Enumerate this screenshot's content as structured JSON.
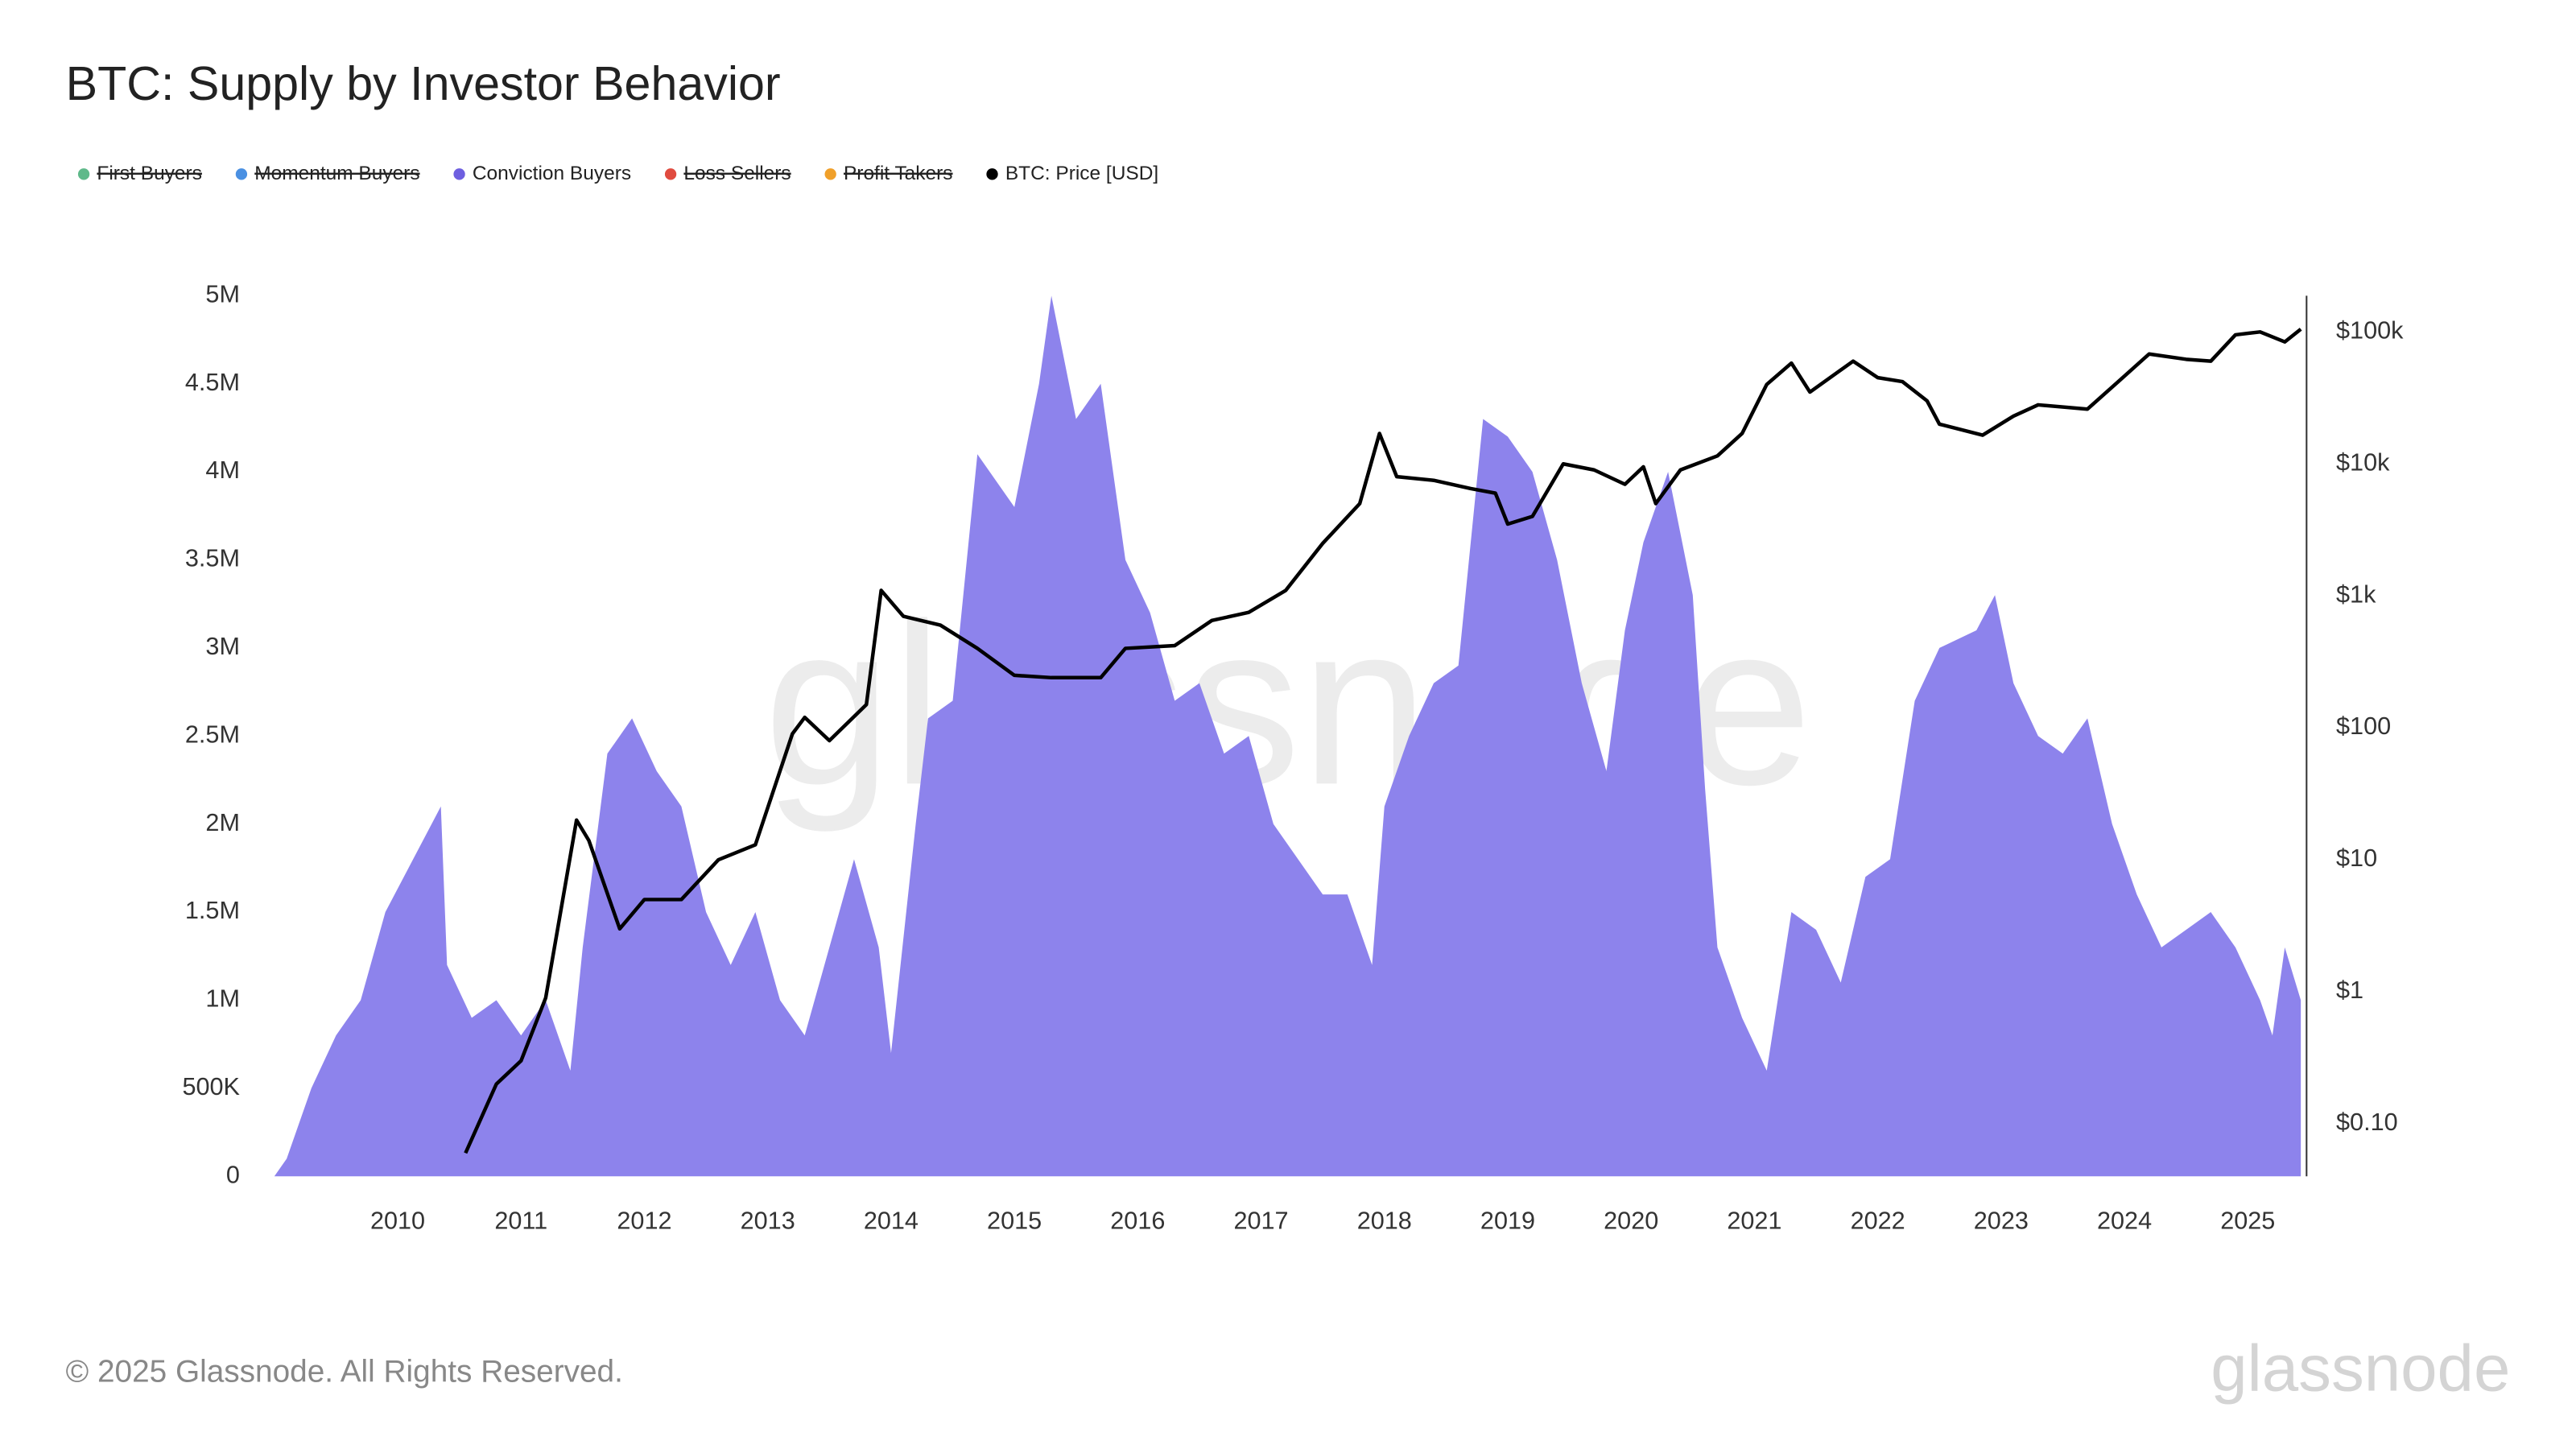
{
  "chart_data": {
    "type": "area",
    "title": "BTC: Supply by Investor Behavior",
    "watermark": "glassnode",
    "footer": "© 2025 Glassnode. All Rights Reserved.",
    "logo": "glassnode",
    "xlim": [
      2009,
      2025.45
    ],
    "xticks": [
      2010,
      2011,
      2012,
      2013,
      2014,
      2015,
      2016,
      2017,
      2018,
      2019,
      2020,
      2021,
      2022,
      2023,
      2024,
      2025
    ],
    "ylim": [
      0,
      5000000
    ],
    "yticks": [
      0,
      {
        "value": 500000,
        "label": "500K"
      },
      {
        "value": 1000000,
        "label": "1M"
      },
      {
        "value": 1500000,
        "label": "1.5M"
      },
      {
        "value": 2000000,
        "label": "2M"
      },
      {
        "value": 2500000,
        "label": "2.5M"
      },
      {
        "value": 3000000,
        "label": "3M"
      },
      {
        "value": 3500000,
        "label": "3.5M"
      },
      {
        "value": 4000000,
        "label": "4M"
      },
      {
        "value": 4500000,
        "label": "4.5M"
      },
      {
        "value": 5000000,
        "label": "5M"
      }
    ],
    "y2_log": true,
    "y2lim": [
      0.04,
      188000
    ],
    "y2ticks": [
      {
        "value": 0.1,
        "label": "$0.10"
      },
      {
        "value": 1,
        "label": "$1"
      },
      {
        "value": 10,
        "label": "$10"
      },
      {
        "value": 100,
        "label": "$100"
      },
      {
        "value": 1000,
        "label": "$1k"
      },
      {
        "value": 10000,
        "label": "$10k"
      },
      {
        "value": 100000,
        "label": "$100k"
      }
    ],
    "series": [
      {
        "name": "First Buyers",
        "color": "#5fb98a",
        "visible": false
      },
      {
        "name": "Momentum Buyers",
        "color": "#4a90e2",
        "visible": false
      },
      {
        "name": "Conviction Buyers",
        "color": "#6e5fe0",
        "fill": "#8d83ec",
        "visible": true,
        "kind": "area",
        "x": [
          2009.0,
          2009.1,
          2009.3,
          2009.5,
          2009.7,
          2009.9,
          2010.35,
          2010.4,
          2010.6,
          2010.8,
          2011.0,
          2011.2,
          2011.4,
          2011.5,
          2011.7,
          2011.9,
          2012.1,
          2012.3,
          2012.5,
          2012.7,
          2012.9,
          2013.1,
          2013.3,
          2013.5,
          2013.7,
          2013.9,
          2014.0,
          2014.2,
          2014.3,
          2014.5,
          2014.7,
          2015.0,
          2015.2,
          2015.3,
          2015.5,
          2015.7,
          2015.9,
          2016.1,
          2016.3,
          2016.5,
          2016.7,
          2016.9,
          2017.1,
          2017.3,
          2017.5,
          2017.7,
          2017.9,
          2018.0,
          2018.2,
          2018.4,
          2018.6,
          2018.8,
          2019.0,
          2019.2,
          2019.4,
          2019.6,
          2019.8,
          2019.95,
          2020.1,
          2020.3,
          2020.5,
          2020.6,
          2020.7,
          2020.9,
          2021.1,
          2021.3,
          2021.5,
          2021.7,
          2021.9,
          2022.1,
          2022.3,
          2022.5,
          2022.8,
          2022.95,
          2023.1,
          2023.3,
          2023.5,
          2023.7,
          2023.9,
          2024.1,
          2024.3,
          2024.5,
          2024.7,
          2024.9,
          2025.1,
          2025.2,
          2025.3,
          2025.43
        ],
        "values": [
          0,
          100000,
          500000,
          800000,
          1000000,
          1500000,
          2100000,
          1200000,
          900000,
          1000000,
          800000,
          1000000,
          600000,
          1300000,
          2400000,
          2600000,
          2300000,
          2100000,
          1500000,
          1200000,
          1500000,
          1000000,
          800000,
          1300000,
          1800000,
          1300000,
          700000,
          2000000,
          2600000,
          2700000,
          4100000,
          3800000,
          4500000,
          5000000,
          4300000,
          4500000,
          3500000,
          3200000,
          2700000,
          2800000,
          2400000,
          2500000,
          2000000,
          1800000,
          1600000,
          1600000,
          1200000,
          2100000,
          2500000,
          2800000,
          2900000,
          4300000,
          4200000,
          4000000,
          3500000,
          2800000,
          2300000,
          3100000,
          3600000,
          4000000,
          3300000,
          2200000,
          1300000,
          900000,
          600000,
          1500000,
          1400000,
          1100000,
          1700000,
          1800000,
          2700000,
          3000000,
          3100000,
          3300000,
          2800000,
          2500000,
          2400000,
          2600000,
          2000000,
          1600000,
          1300000,
          1400000,
          1500000,
          1300000,
          1000000,
          800000,
          1300000,
          1000000
        ]
      },
      {
        "name": "Loss Sellers",
        "color": "#e04b3f",
        "visible": false
      },
      {
        "name": "Profit Takers",
        "color": "#f0a02a",
        "visible": false
      },
      {
        "name": "BTC: Price [USD]",
        "color": "#000000",
        "visible": true,
        "kind": "line",
        "axis": "y2",
        "x": [
          2010.55,
          2010.8,
          2011.0,
          2011.2,
          2011.45,
          2011.55,
          2011.8,
          2012.0,
          2012.3,
          2012.6,
          2012.9,
          2013.2,
          2013.3,
          2013.5,
          2013.8,
          2013.92,
          2014.1,
          2014.4,
          2014.7,
          2015.0,
          2015.3,
          2015.7,
          2015.9,
          2016.3,
          2016.6,
          2016.9,
          2017.2,
          2017.5,
          2017.8,
          2017.96,
          2018.1,
          2018.4,
          2018.7,
          2018.9,
          2019.0,
          2019.2,
          2019.45,
          2019.7,
          2019.95,
          2020.1,
          2020.2,
          2020.4,
          2020.7,
          2020.9,
          2021.1,
          2021.3,
          2021.45,
          2021.8,
          2022.0,
          2022.2,
          2022.4,
          2022.5,
          2022.85,
          2023.1,
          2023.3,
          2023.7,
          2023.95,
          2024.2,
          2024.5,
          2024.7,
          2024.9,
          2025.1,
          2025.3,
          2025.43
        ],
        "values": [
          0.06,
          0.2,
          0.3,
          0.9,
          20,
          14,
          3,
          5,
          5,
          10,
          13,
          90,
          120,
          80,
          150,
          1100,
          700,
          600,
          400,
          250,
          240,
          240,
          400,
          420,
          650,
          750,
          1100,
          2500,
          5000,
          17000,
          8000,
          7500,
          6500,
          6000,
          3500,
          4000,
          10000,
          9000,
          7000,
          9500,
          5000,
          9000,
          11500,
          17000,
          40000,
          58000,
          35000,
          60000,
          45000,
          42000,
          30000,
          20000,
          16500,
          23000,
          28000,
          26000,
          42000,
          68000,
          62000,
          60000,
          95000,
          100000,
          84000,
          105000
        ]
      }
    ]
  }
}
